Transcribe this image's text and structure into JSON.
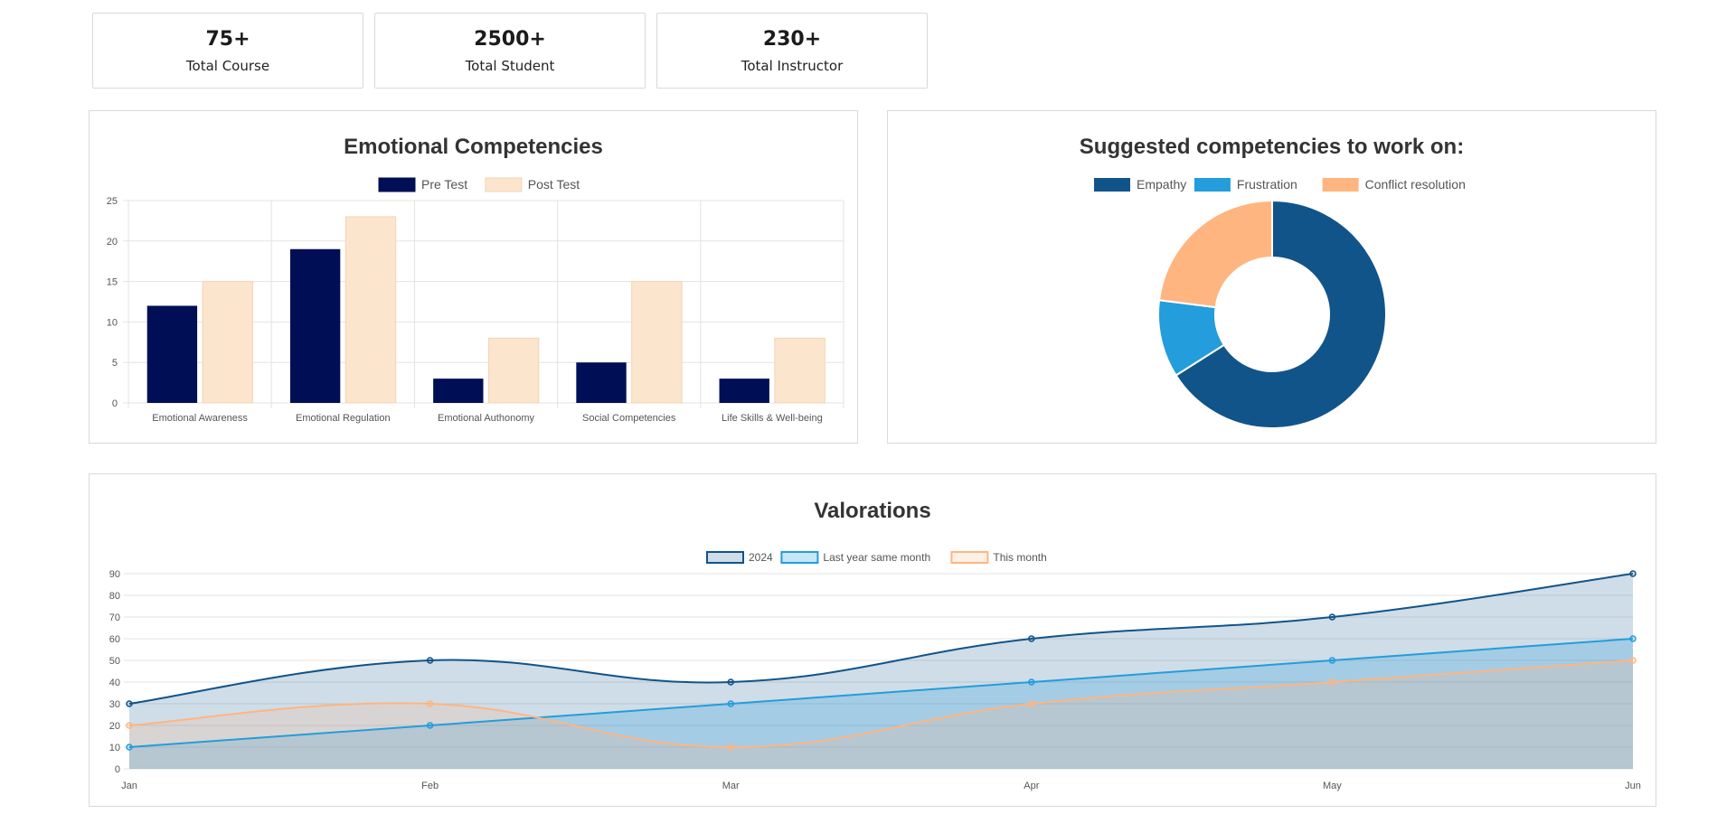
{
  "stats": [
    {
      "value": "75+",
      "label": "Total Course"
    },
    {
      "value": "2500+",
      "label": "Total Student"
    },
    {
      "value": "230+",
      "label": "Total Instructor"
    }
  ],
  "chart_data": [
    {
      "type": "bar",
      "title": "Emotional Competencies",
      "categories": [
        "Emotional Awareness",
        "Emotional Regulation",
        "Emotional Authonomy",
        "Social Competencies",
        "Life Skills & Well-being"
      ],
      "series": [
        {
          "name": "Pre Test",
          "values": [
            12,
            19,
            3,
            5,
            3
          ],
          "color": "#000f55"
        },
        {
          "name": "Post Test",
          "values": [
            15,
            23,
            8,
            15,
            8
          ],
          "color": "#fce5cd"
        }
      ],
      "ylim": [
        0,
        25
      ],
      "yticks": [
        0,
        5,
        10,
        15,
        20,
        25
      ],
      "legend": "top",
      "grid": true
    },
    {
      "type": "pie",
      "donut": true,
      "title": "Suggested competencies to work on:",
      "labels": [
        "Empathy",
        "Frustration",
        "Conflict resolution"
      ],
      "values": [
        66,
        11,
        23
      ],
      "colors": [
        "#11548a",
        "#239ddb",
        "#ffb580"
      ],
      "legend": "top"
    },
    {
      "type": "line",
      "title": "Valorations",
      "x": [
        "Jan",
        "Feb",
        "Mar",
        "Apr",
        "May",
        "Jun"
      ],
      "series": [
        {
          "name": "2024",
          "values": [
            30,
            50,
            40,
            60,
            70,
            90
          ],
          "color": "#11548a",
          "fill": "rgba(17,84,138,0.2)",
          "smooth": true
        },
        {
          "name": "Last year same month",
          "values": [
            10,
            20,
            30,
            40,
            50,
            60
          ],
          "color": "#239ddb",
          "fill": "rgba(35,157,219,0.25)",
          "smooth": false
        },
        {
          "name": "This month",
          "values": [
            20,
            30,
            10,
            30,
            40,
            50
          ],
          "color": "#ffb580",
          "fill": "rgba(255,181,128,0.2)",
          "smooth": true
        }
      ],
      "ylim": [
        0,
        90
      ],
      "yticks": [
        0,
        10,
        20,
        30,
        40,
        50,
        60,
        70,
        80,
        90
      ],
      "legend": "top",
      "grid": true
    }
  ]
}
